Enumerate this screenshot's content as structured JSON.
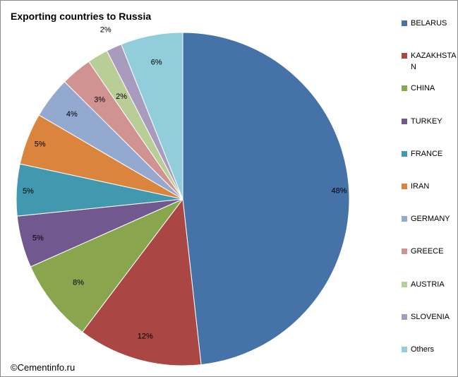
{
  "chart_data": {
    "type": "pie",
    "title": "Exporting countries to Russia",
    "start_angle": "12 o'clock",
    "direction": "clockwise",
    "legend_position": "right",
    "slices": [
      {
        "name": "BELARUS",
        "value": 48,
        "label": "48%",
        "color": "#4572a7"
      },
      {
        "name": "KAZAKHSTAN",
        "value": 12,
        "label": "12%",
        "color": "#aa4643"
      },
      {
        "name": "CHINA",
        "value": 8,
        "label": "8%",
        "color": "#89a54e"
      },
      {
        "name": "TURKEY",
        "value": 5,
        "label": "5%",
        "color": "#71588f"
      },
      {
        "name": "FRANCE",
        "value": 5,
        "label": "5%",
        "color": "#4198af"
      },
      {
        "name": "IRAN",
        "value": 5,
        "label": "5%",
        "color": "#db843d"
      },
      {
        "name": "GERMANY",
        "value": 4,
        "label": "4%",
        "color": "#93a9cf"
      },
      {
        "name": "GREECE",
        "value": 3,
        "label": "3%",
        "color": "#d19392"
      },
      {
        "name": "AUSTRIA",
        "value": 2,
        "label": "2%",
        "color": "#b9cd96"
      },
      {
        "name": "SLOVENIA",
        "value": 1.5,
        "label": "2%",
        "color": "#a99bbd"
      },
      {
        "name": "Others",
        "value": 6,
        "label": "6%",
        "color": "#92cddc"
      }
    ]
  },
  "watermark": "©Cementinfo.ru"
}
